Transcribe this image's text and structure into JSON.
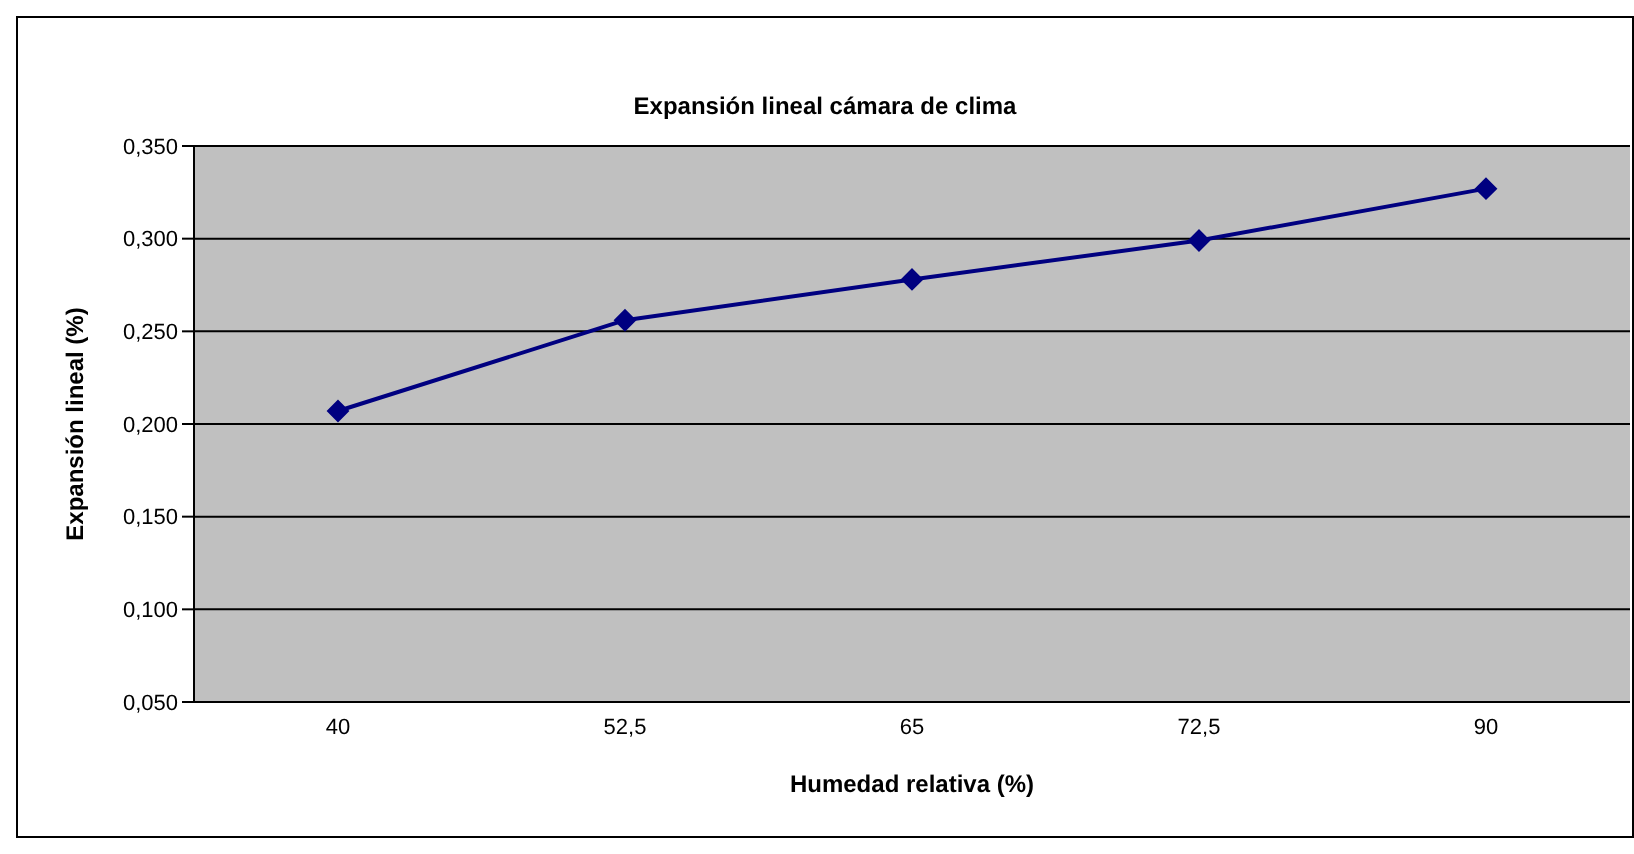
{
  "chart_data": {
    "type": "line",
    "title": "Expansión lineal cámara de clima",
    "xlabel": "Humedad relativa (%)",
    "ylabel": "Expansión lineal (%)",
    "categories": [
      "40",
      "52,5",
      "65",
      "72,5",
      "90"
    ],
    "series": [
      {
        "color": "#000080",
        "values": [
          0.207,
          0.256,
          0.278,
          0.299,
          0.327
        ]
      }
    ],
    "ylim": [
      0.05,
      0.35
    ],
    "yticks": [
      {
        "value": 0.05,
        "label": "0,050"
      },
      {
        "value": 0.1,
        "label": "0,100"
      },
      {
        "value": 0.15,
        "label": "0,150"
      },
      {
        "value": 0.2,
        "label": "0,200"
      },
      {
        "value": 0.25,
        "label": "0,250"
      },
      {
        "value": 0.3,
        "label": "0,300"
      },
      {
        "value": 0.35,
        "label": "0,350"
      }
    ],
    "grid": "y",
    "marker": "diamond",
    "line_style": "solid"
  }
}
